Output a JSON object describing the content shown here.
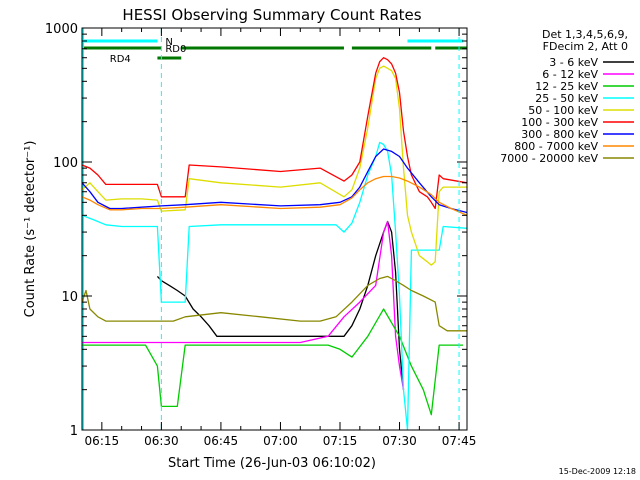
{
  "chart_data": {
    "type": "line",
    "title": "HESSI Observing Summary Count Rates",
    "xlabel": "Start Time (26-Jun-03 06:10:02)",
    "ylabel": "Count Rate (s⁻¹ detector⁻¹)",
    "xlim": [
      "06:10",
      "07:47"
    ],
    "ylim": [
      1,
      1000
    ],
    "y_scale": "log",
    "x_ticks": [
      "06:15",
      "06:30",
      "06:45",
      "07:00",
      "07:15",
      "07:30",
      "07:45"
    ],
    "y_ticks": [
      "1",
      "10",
      "100",
      "1000"
    ],
    "legend_header": [
      "Det 1,3,4,5,6,9,",
      "FDecim 2, Att 0"
    ],
    "legend_position": "right",
    "timestamp": "15-Dec-2009 12:18",
    "flags": [
      {
        "name": "N",
        "color": "#00ffff",
        "segments": [
          [
            "06:10",
            "06:29"
          ],
          [
            "07:32",
            "07:46"
          ]
        ]
      },
      {
        "name": "RD0",
        "color": "#007700",
        "segments": [
          [
            "06:10",
            "06:30"
          ],
          [
            "06:35",
            "07:16"
          ],
          [
            "07:18",
            "07:38"
          ],
          [
            "07:39",
            "07:47"
          ]
        ]
      },
      {
        "name": "RD4",
        "color": "#007700",
        "segments": [
          [
            "06:29",
            "06:35"
          ]
        ]
      }
    ],
    "vlines": [
      "06:30",
      "07:45"
    ],
    "series": [
      {
        "name": "3 - 6 keV",
        "color": "#000000",
        "x": [
          "06:29",
          "06:30",
          "06:32",
          "06:34",
          "06:36",
          "06:38",
          "06:40",
          "06:42",
          "06:44",
          "07:14",
          "07:16",
          "07:18",
          "07:20",
          "07:22",
          "07:24",
          "07:26",
          "07:27",
          "07:28",
          "07:29",
          "07:30",
          "07:31"
        ],
        "y": [
          14,
          13,
          12,
          11,
          10,
          8,
          7,
          6,
          5,
          5,
          5,
          6,
          8,
          12,
          20,
          30,
          36,
          30,
          15,
          4,
          2
        ]
      },
      {
        "name": "6 - 12 keV",
        "color": "#ff00ff",
        "x": [
          "06:10",
          "06:20",
          "06:30",
          "06:40",
          "06:45",
          "06:55",
          "07:05",
          "07:12",
          "07:16",
          "07:20",
          "07:24",
          "07:26",
          "07:27",
          "07:28",
          "07:29",
          "07:30",
          "07:31"
        ],
        "y": [
          4.5,
          4.5,
          4.5,
          4.5,
          4.5,
          4.5,
          4.5,
          5,
          7,
          9,
          12,
          30,
          36,
          20,
          5,
          3,
          2
        ]
      },
      {
        "name": "12 - 25 keV",
        "color": "#00cc00",
        "x": [
          "06:10",
          "06:20",
          "06:26",
          "06:29",
          "06:30",
          "06:34",
          "06:36",
          "06:45",
          "06:55",
          "07:05",
          "07:12",
          "07:15",
          "07:18",
          "07:22",
          "07:26",
          "07:30",
          "07:33",
          "07:36",
          "07:38",
          "07:40",
          "07:46"
        ],
        "y": [
          4.3,
          4.3,
          4.3,
          3,
          1.5,
          1.5,
          4.3,
          4.3,
          4.3,
          4.3,
          4.3,
          4,
          3.5,
          5,
          8,
          5,
          3,
          2,
          1.3,
          4.3,
          4.3
        ]
      },
      {
        "name": "25 - 50 keV",
        "color": "#00ffff",
        "x": [
          "06:10",
          "06:13",
          "06:16",
          "06:20",
          "06:25",
          "06:29",
          "06:30",
          "06:36",
          "06:37",
          "06:45",
          "07:00",
          "07:10",
          "07:14",
          "07:16",
          "07:18",
          "07:20",
          "07:22",
          "07:24",
          "07:25",
          "07:26",
          "07:27",
          "07:28",
          "07:29",
          "07:30",
          "07:31",
          "07:32",
          "07:33",
          "07:40",
          "07:41",
          "07:47"
        ],
        "y": [
          40,
          37,
          34,
          33,
          33,
          33,
          9,
          9,
          33,
          34,
          34,
          34,
          34,
          30,
          35,
          50,
          80,
          110,
          140,
          135,
          120,
          80,
          30,
          10,
          2,
          1,
          22,
          22,
          33,
          32
        ]
      },
      {
        "name": "50 - 100 keV",
        "color": "#dddd00",
        "x": [
          "06:10",
          "06:12",
          "06:14",
          "06:16",
          "06:20",
          "06:25",
          "06:29",
          "06:30",
          "06:36",
          "06:37",
          "06:45",
          "07:00",
          "07:10",
          "07:16",
          "07:18",
          "07:20",
          "07:22",
          "07:24",
          "07:25",
          "07:26",
          "07:27",
          "07:28",
          "07:29",
          "07:30",
          "07:31",
          "07:32",
          "07:33",
          "07:35",
          "07:37",
          "07:38",
          "07:39",
          "07:40",
          "07:41",
          "07:47"
        ],
        "y": [
          62,
          70,
          60,
          52,
          53,
          53,
          52,
          43,
          44,
          75,
          70,
          65,
          70,
          55,
          62,
          90,
          180,
          420,
          500,
          520,
          500,
          480,
          420,
          250,
          90,
          40,
          30,
          20,
          18,
          17,
          18,
          60,
          65,
          65
        ]
      },
      {
        "name": "100 - 300 keV",
        "color": "#ff0000",
        "x": [
          "06:10",
          "06:12",
          "06:14",
          "06:16",
          "06:20",
          "06:25",
          "06:29",
          "06:30",
          "06:36",
          "06:37",
          "06:45",
          "07:00",
          "07:10",
          "07:16",
          "07:18",
          "07:20",
          "07:22",
          "07:24",
          "07:25",
          "07:26",
          "07:27",
          "07:28",
          "07:29",
          "07:30",
          "07:31",
          "07:32",
          "07:33",
          "07:35",
          "07:37",
          "07:38",
          "07:39",
          "07:40",
          "07:41",
          "07:47"
        ],
        "y": [
          95,
          90,
          80,
          68,
          68,
          68,
          68,
          55,
          55,
          95,
          92,
          85,
          90,
          72,
          80,
          100,
          220,
          460,
          560,
          600,
          580,
          540,
          460,
          330,
          170,
          110,
          80,
          60,
          55,
          50,
          45,
          80,
          75,
          70
        ]
      },
      {
        "name": "300 - 800 keV",
        "color": "#0000ff",
        "x": [
          "06:10",
          "06:12",
          "06:14",
          "06:17",
          "06:20",
          "06:25",
          "06:30",
          "06:36",
          "06:45",
          "07:00",
          "07:10",
          "07:15",
          "07:18",
          "07:20",
          "07:22",
          "07:24",
          "07:26",
          "07:28",
          "07:30",
          "07:32",
          "07:35",
          "07:38",
          "07:40",
          "07:43",
          "07:47"
        ],
        "y": [
          70,
          60,
          50,
          45,
          45,
          46,
          47,
          48,
          50,
          47,
          48,
          50,
          55,
          65,
          85,
          110,
          125,
          120,
          110,
          90,
          70,
          55,
          48,
          45,
          42
        ]
      },
      {
        "name": "800 - 7000 keV",
        "color": "#ff8800",
        "x": [
          "06:10",
          "06:12",
          "06:14",
          "06:17",
          "06:20",
          "06:25",
          "06:30",
          "06:36",
          "06:45",
          "07:00",
          "07:10",
          "07:15",
          "07:18",
          "07:20",
          "07:22",
          "07:24",
          "07:26",
          "07:28",
          "07:30",
          "07:32",
          "07:35",
          "07:38",
          "07:40",
          "07:43",
          "07:47"
        ],
        "y": [
          55,
          52,
          48,
          44,
          44,
          45,
          45,
          46,
          48,
          45,
          46,
          48,
          54,
          62,
          70,
          75,
          78,
          78,
          76,
          72,
          65,
          57,
          50,
          45,
          40
        ]
      },
      {
        "name": "7000 - 20000 keV",
        "color": "#888800",
        "x": [
          "06:10",
          "06:11",
          "06:12",
          "06:14",
          "06:16",
          "06:20",
          "06:25",
          "06:30",
          "06:33",
          "06:36",
          "06:45",
          "06:55",
          "07:05",
          "07:10",
          "07:14",
          "07:18",
          "07:22",
          "07:25",
          "07:27",
          "07:29",
          "07:31",
          "07:33",
          "07:36",
          "07:39",
          "07:40",
          "07:42",
          "07:44",
          "07:47"
        ],
        "y": [
          9,
          11,
          8,
          7,
          6.5,
          6.5,
          6.5,
          6.5,
          6.5,
          7,
          7.5,
          7,
          6.5,
          6.5,
          7,
          9,
          12,
          13.5,
          14,
          13,
          12,
          11,
          10,
          9,
          6,
          5.5,
          5.5,
          5.5
        ]
      }
    ]
  }
}
